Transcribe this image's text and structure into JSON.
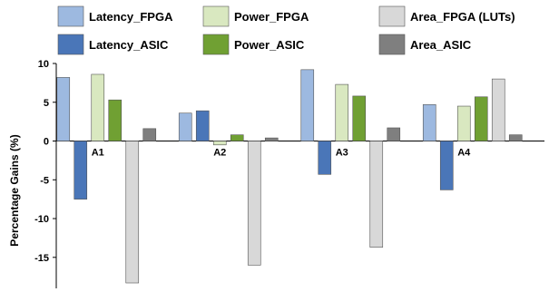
{
  "chart_data": {
    "type": "bar",
    "title": "",
    "xlabel": "",
    "ylabel": "Percentage Gains (%)",
    "ylim": [
      -19,
      10
    ],
    "yticks": [
      10,
      5,
      0,
      -5,
      -10,
      -15
    ],
    "grid": false,
    "legend_position": "top",
    "categories": [
      "A1",
      "A2",
      "A3",
      "A4"
    ],
    "series": [
      {
        "name": "Latency_FPGA",
        "color": "#9db9e0",
        "values": [
          8.2,
          3.6,
          9.2,
          4.7
        ]
      },
      {
        "name": "Latency_ASIC",
        "color": "#4a76b8",
        "values": [
          -7.5,
          3.9,
          -4.3,
          -6.3
        ]
      },
      {
        "name": "Power_FPGA",
        "color": "#d9e8c0",
        "values": [
          8.6,
          -0.5,
          7.3,
          4.5
        ]
      },
      {
        "name": "Power_ASIC",
        "color": "#70a033",
        "values": [
          5.3,
          0.8,
          5.8,
          5.7
        ]
      },
      {
        "name": "Area_FPGA (LUTs)",
        "color": "#d8d8d8",
        "values": [
          -18.3,
          -16.0,
          -13.7,
          8.0
        ]
      },
      {
        "name": "Area_ASIC",
        "color": "#7f7f7f",
        "values": [
          1.6,
          0.4,
          1.7,
          0.8
        ]
      }
    ],
    "legend_order": [
      "Latency_FPGA",
      "Power_FPGA",
      "Area_FPGA (LUTs)",
      "Latency_ASIC",
      "Power_ASIC",
      "Area_ASIC"
    ]
  }
}
